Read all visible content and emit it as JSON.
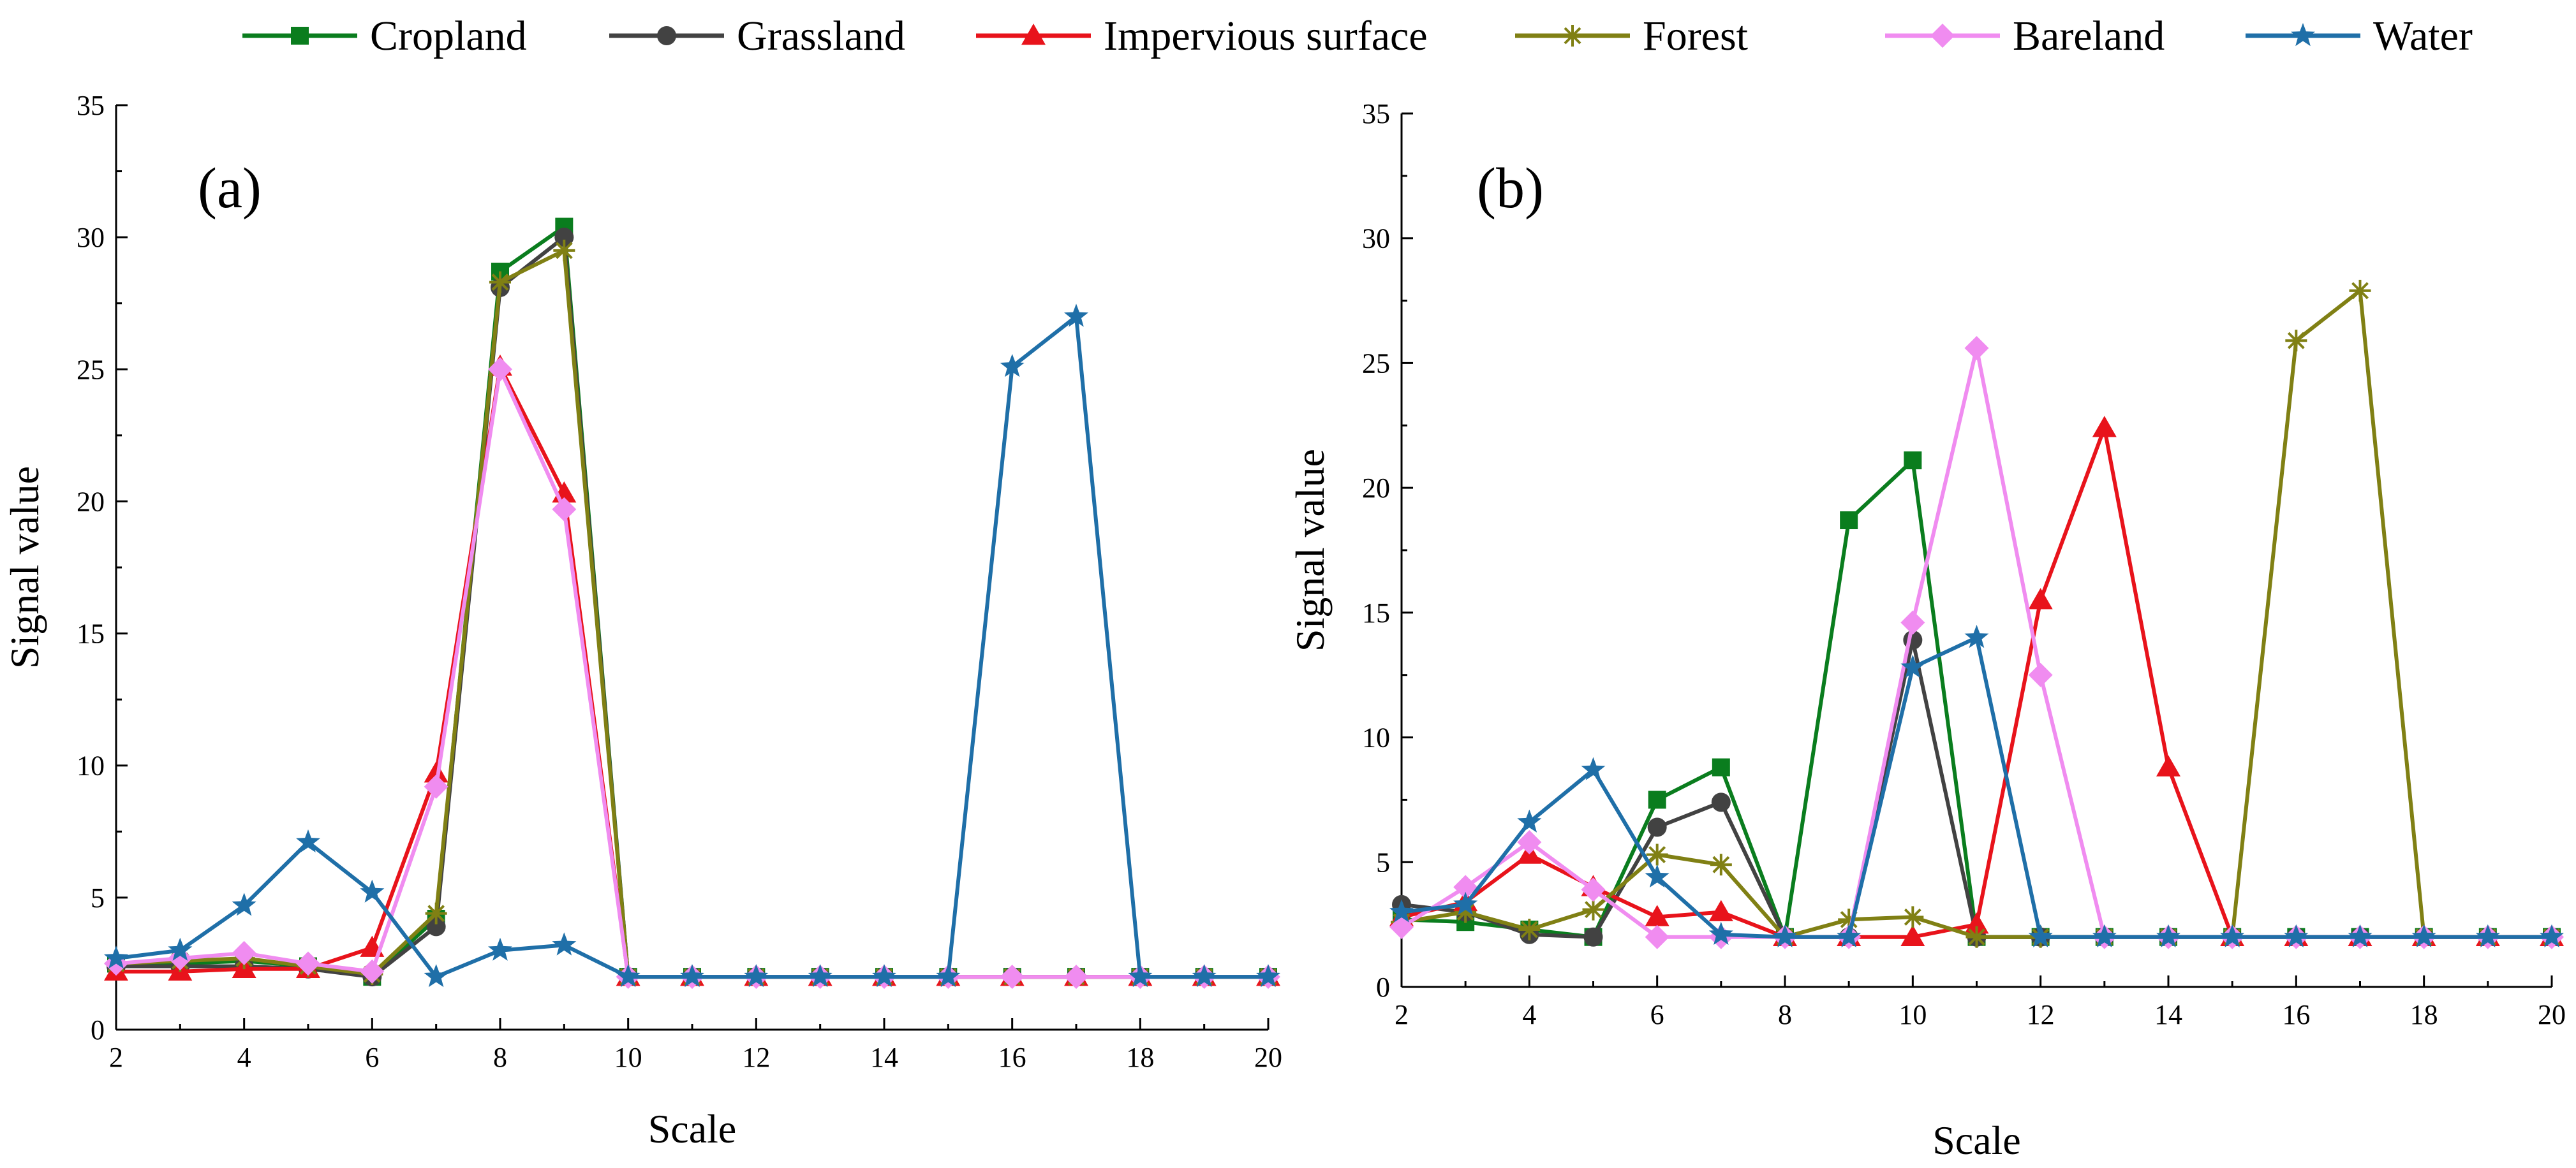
{
  "legend": {
    "series": [
      {
        "name": "Cropland",
        "color": "#0a7d1e",
        "marker": "square"
      },
      {
        "name": "Grassland",
        "color": "#424242",
        "marker": "circle"
      },
      {
        "name": "Impervious surface",
        "color": "#e8131b",
        "marker": "triangle"
      },
      {
        "name": "Forest",
        "color": "#808014",
        "marker": "asterisk"
      },
      {
        "name": "Bareland",
        "color": "#f08cf0",
        "marker": "diamond"
      },
      {
        "name": "Water",
        "color": "#1f6fa8",
        "marker": "star"
      }
    ]
  },
  "chart_data": [
    {
      "type": "line",
      "panel_label": "(a)",
      "xlabel": "Scale",
      "ylabel": "Signal value",
      "xlim": [
        2,
        20
      ],
      "ylim": [
        0,
        35
      ],
      "xticks": [
        2,
        4,
        6,
        8,
        10,
        12,
        14,
        16,
        18,
        20
      ],
      "yticks": [
        0,
        5,
        10,
        15,
        20,
        25,
        30,
        35
      ],
      "x": [
        2,
        3,
        4,
        5,
        6,
        7,
        8,
        9,
        10,
        11,
        12,
        13,
        14,
        15,
        16,
        17,
        18,
        19,
        20
      ],
      "series": [
        {
          "name": "Cropland",
          "values": [
            2.5,
            2.5,
            2.6,
            2.4,
            2.0,
            4.2,
            28.7,
            30.4,
            2.0,
            2.0,
            2.0,
            2.0,
            2.0,
            2.0,
            2.0,
            2.0,
            2.0,
            2.0,
            2.0
          ]
        },
        {
          "name": "Grassland",
          "values": [
            2.4,
            2.4,
            2.4,
            2.3,
            2.0,
            3.9,
            28.1,
            30.0,
            2.0,
            2.0,
            2.0,
            2.0,
            2.0,
            2.0,
            2.0,
            2.0,
            2.0,
            2.0,
            2.0
          ]
        },
        {
          "name": "Impervious surface",
          "values": [
            2.2,
            2.2,
            2.3,
            2.3,
            3.1,
            9.7,
            25.1,
            20.3,
            2.0,
            2.0,
            2.0,
            2.0,
            2.0,
            2.0,
            2.0,
            2.0,
            2.0,
            2.0,
            2.0
          ]
        },
        {
          "name": "Forest",
          "values": [
            2.5,
            2.6,
            2.7,
            2.4,
            2.1,
            4.4,
            28.3,
            29.5,
            2.0,
            2.0,
            2.0,
            2.0,
            2.0,
            2.0,
            2.0,
            2.0,
            2.0,
            2.0,
            2.0
          ]
        },
        {
          "name": "Bareland",
          "values": [
            2.5,
            2.7,
            2.9,
            2.5,
            2.2,
            9.2,
            25.0,
            19.7,
            2.0,
            2.0,
            2.0,
            2.0,
            2.0,
            2.0,
            2.0,
            2.0,
            2.0,
            2.0,
            2.0
          ]
        },
        {
          "name": "Water",
          "values": [
            2.7,
            3.0,
            4.7,
            7.1,
            5.2,
            2.0,
            3.0,
            3.2,
            2.0,
            2.0,
            2.0,
            2.0,
            2.0,
            2.0,
            25.1,
            27.0,
            2.0,
            2.0,
            2.0
          ]
        }
      ]
    },
    {
      "type": "line",
      "panel_label": "(b)",
      "xlabel": "Scale",
      "ylabel": "Signal value",
      "xlim": [
        2,
        20
      ],
      "ylim": [
        0,
        35
      ],
      "xticks": [
        2,
        4,
        6,
        8,
        10,
        12,
        14,
        16,
        18,
        20
      ],
      "yticks": [
        0,
        5,
        10,
        15,
        20,
        25,
        30,
        35
      ],
      "x": [
        2,
        3,
        4,
        5,
        6,
        7,
        8,
        9,
        10,
        11,
        12,
        13,
        14,
        15,
        16,
        17,
        18,
        19,
        20
      ],
      "series": [
        {
          "name": "Cropland",
          "values": [
            2.7,
            2.6,
            2.3,
            2.0,
            7.5,
            8.8,
            2.0,
            18.7,
            21.1,
            2.0,
            2.0,
            2.0,
            2.0,
            2.0,
            2.0,
            2.0,
            2.0,
            2.0,
            2.0
          ]
        },
        {
          "name": "Grassland",
          "values": [
            3.3,
            3.0,
            2.1,
            2.0,
            6.4,
            7.4,
            2.0,
            2.0,
            13.9,
            2.0,
            2.0,
            2.0,
            2.0,
            2.0,
            2.0,
            2.0,
            2.0,
            2.0,
            2.0
          ]
        },
        {
          "name": "Impervious surface",
          "values": [
            2.8,
            3.4,
            5.3,
            4.0,
            2.8,
            3.0,
            2.0,
            2.0,
            2.0,
            2.5,
            15.5,
            22.4,
            8.8,
            2.0,
            2.0,
            2.0,
            2.0,
            2.0,
            2.0
          ]
        },
        {
          "name": "Forest",
          "values": [
            2.6,
            3.0,
            2.3,
            3.1,
            5.3,
            4.9,
            2.0,
            2.7,
            2.8,
            2.0,
            2.0,
            2.0,
            2.0,
            2.0,
            25.9,
            27.9,
            2.0,
            2.0,
            2.0
          ]
        },
        {
          "name": "Bareland",
          "values": [
            2.4,
            4.0,
            5.8,
            3.9,
            2.0,
            2.0,
            2.0,
            2.0,
            14.6,
            25.6,
            12.5,
            2.0,
            2.0,
            2.0,
            2.0,
            2.0,
            2.0,
            2.0,
            2.0
          ]
        },
        {
          "name": "Water",
          "values": [
            3.0,
            3.3,
            6.6,
            8.7,
            4.4,
            2.1,
            2.0,
            2.0,
            12.8,
            14.0,
            2.0,
            2.0,
            2.0,
            2.0,
            2.0,
            2.0,
            2.0,
            2.0,
            2.0
          ]
        }
      ]
    }
  ]
}
